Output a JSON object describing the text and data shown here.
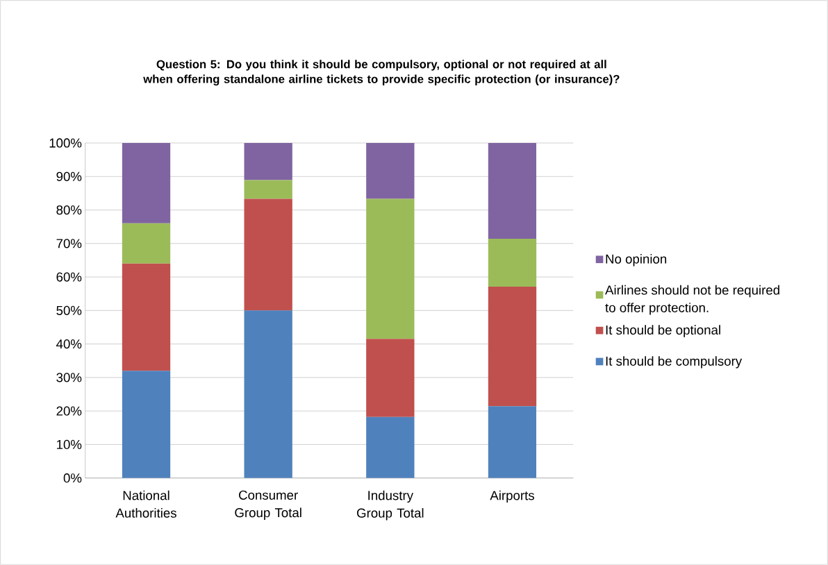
{
  "chart_data": {
    "type": "bar",
    "stacked": true,
    "title": "Question 5: Do you think it should be compulsory, optional or not required at all when offering standalone airline tickets to provide specific protection (or insurance)?",
    "categories": [
      "National Authorities",
      "Consumer Group Total",
      "Industry Group Total",
      "Airports"
    ],
    "series": [
      {
        "name": "It should be compulsory",
        "color": "#4f81bd",
        "values": [
          32,
          50,
          18.2,
          21.4
        ]
      },
      {
        "name": "It should be optional",
        "color": "#c0504d",
        "values": [
          32,
          33.3,
          23.3,
          35.7
        ]
      },
      {
        "name": "Airlines should not be required to offer protection.",
        "color": "#9bbb59",
        "values": [
          12,
          5.6,
          41.8,
          14.3
        ]
      },
      {
        "name": "No opinion",
        "color": "#8064a2",
        "values": [
          24,
          11.1,
          16.7,
          28.6
        ]
      }
    ],
    "ylim": [
      0,
      100
    ],
    "yticks": [
      {
        "value": 0,
        "label": "0%"
      },
      {
        "value": 10,
        "label": "10%"
      },
      {
        "value": 20,
        "label": "20%"
      },
      {
        "value": 30,
        "label": "30%"
      },
      {
        "value": 40,
        "label": "40%"
      },
      {
        "value": 50,
        "label": "50%"
      },
      {
        "value": 60,
        "label": "60%"
      },
      {
        "value": 70,
        "label": "70%"
      },
      {
        "value": 80,
        "label": "80%"
      },
      {
        "value": 90,
        "label": "90%"
      },
      {
        "value": 100,
        "label": "100%"
      }
    ],
    "grid": "y",
    "legend": "right"
  }
}
